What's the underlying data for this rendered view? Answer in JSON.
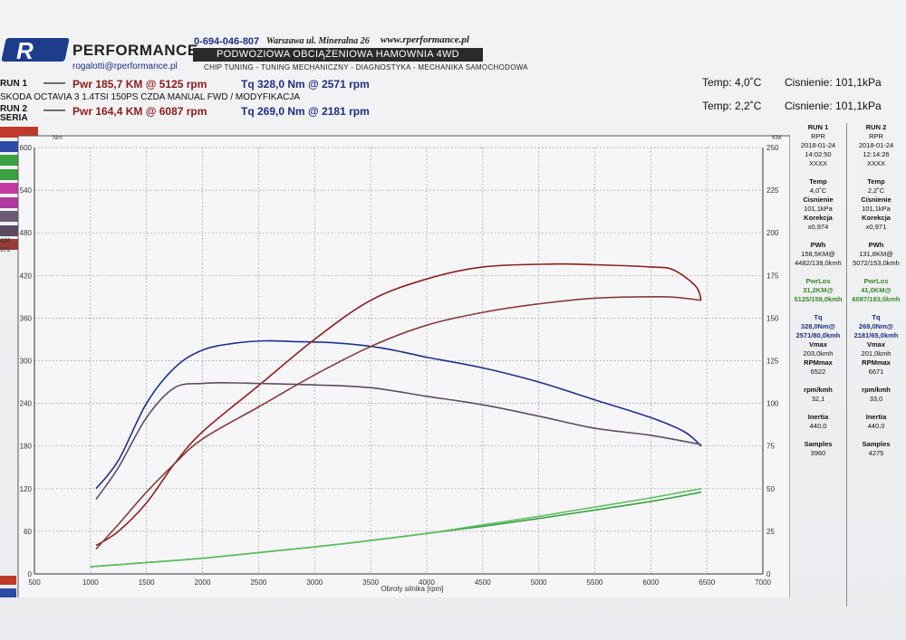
{
  "header": {
    "logo_mark": "R",
    "logo_text": "PERFORMANCE",
    "email": "rogalotti@rperformance.pl",
    "phone": "0-694-046-807",
    "address": "Warszawa ul. Mineralna 26",
    "website": "www.rperformance.pl",
    "banner": "PODWOZIOWA OBCIĄŻENIOWA HAMOWNIA 4WD",
    "tagline": "CHIP TUNING - TUNING MECHANICZNY - DIAGNOSTYKA - MECHANIKA SAMOCHODOWA"
  },
  "runs": {
    "run1_label": "RUN 1",
    "run1_dash": "——",
    "run1_pwr": "Pwr 185,7 KM @ 5125 rpm",
    "run1_tq": "Tq 328,0 Nm @ 2571 rpm",
    "description": "SKODA OCTAVIA 3 1.4TSI 150PS CZDA MANUAL FWD / MODYFIKACJA",
    "run2_label": "RUN 2",
    "run2_sub": "SERIA",
    "run2_dash": "——",
    "run2_pwr": "Pwr 164,4 KM @ 6087 rpm",
    "run2_tq": "Tq 269,0 Nm @ 2181 rpm",
    "temp1": "Temp: 4,0˚C",
    "press1": "Cisnienie: 101,1kPa",
    "temp2": "Temp: 2,2˚C",
    "press2": "Cisnienie: 101,1kPa"
  },
  "legend_strip": [
    "",
    "",
    "",
    "",
    "",
    "",
    "",
    "",
    ""
  ],
  "legend_colors": [
    "#c0392b",
    "#2c4aa8",
    "#3aa040",
    "#3aa040",
    "#c23aa0",
    "#b03aa0",
    "#6a5a70",
    "#5a4a60",
    "#9a3a3a"
  ],
  "legend_nums": [
    "400",
    "372"
  ],
  "table": {
    "run1": [
      "RUN 1",
      "RPR",
      "2018-01-24",
      "14:02:50",
      "XXXX",
      "",
      "Temp",
      "4,0˚C",
      "Cisnienie",
      "101,1kPa",
      "Korekcja",
      "x0,974",
      "",
      "PWh",
      "158,5KM@",
      "4482/139,0kmh",
      "",
      "PwrLos",
      "31,2KM@",
      "5125/159,0kmh",
      "",
      "Tq",
      "328,0Nm@",
      "2571/80,0kmh",
      "Vmax",
      "203,0kmh",
      "RPMmax",
      "6522",
      "",
      "rpm/kmh",
      "32,1",
      "",
      "Inertia",
      "440,0",
      "",
      "Samples",
      "3960"
    ],
    "run2": [
      "RUN 2",
      "RPR",
      "2018-01-24",
      "12:14:26",
      "XXXX",
      "",
      "Temp",
      "2,2˚C",
      "Cisnienie",
      "101,1kPa",
      "Korekcja",
      "x0,971",
      "",
      "PWh",
      "131,8KM@",
      "5072/153,0kmh",
      "",
      "PwrLos",
      "41,0KM@",
      "6087/183,0kmh",
      "",
      "Tq",
      "269,0Nm@",
      "2181/65,0kmh",
      "Vmax",
      "201,0kmh",
      "RPMmax",
      "6671",
      "",
      "rpm/kmh",
      "33,0",
      "",
      "Inertia",
      "440,0",
      "",
      "Samples",
      "4275"
    ],
    "green_rows": [
      17,
      18,
      19
    ],
    "blue_rows": [
      21,
      22,
      23
    ],
    "bold_rows": [
      0,
      6,
      8,
      10,
      13,
      17,
      21,
      24,
      26,
      29,
      32,
      35
    ]
  },
  "chart_data": {
    "type": "line",
    "xlabel": "Obroty silnika [rpm]",
    "ylabel_left": "Nm",
    "ylabel_right": "KM",
    "xlim": [
      500,
      7000
    ],
    "ylim_left": [
      0,
      600
    ],
    "ylim_right": [
      0,
      250
    ],
    "x_ticks": [
      500,
      1000,
      1500,
      2000,
      2500,
      3000,
      3500,
      4000,
      4500,
      5000,
      5500,
      6000,
      6500,
      7000
    ],
    "y_ticks_left": [
      0,
      60,
      120,
      180,
      240,
      300,
      360,
      420,
      480,
      540,
      600
    ],
    "y_ticks_right": [
      0,
      25,
      50,
      75,
      100,
      125,
      150,
      175,
      200,
      225,
      250
    ],
    "grid": true,
    "series": [
      {
        "color": "#1f2f8f",
        "axis": "left",
        "x": [
          1050,
          1250,
          1500,
          1750,
          2000,
          2300,
          2571,
          2800,
          3200,
          3600,
          4000,
          4500,
          5000,
          5500,
          6000,
          6300,
          6450
        ],
        "y": [
          120,
          160,
          240,
          290,
          315,
          325,
          328,
          327,
          325,
          318,
          305,
          290,
          270,
          245,
          220,
          200,
          180
        ]
      },
      {
        "color": "#8e1e1e",
        "axis": "left",
        "x": [
          1050,
          1250,
          1500,
          1750,
          2000,
          2500,
          3000,
          3500,
          4000,
          4500,
          5125,
          5500,
          6000,
          6200,
          6400,
          6450
        ],
        "y": [
          40,
          60,
          100,
          155,
          200,
          265,
          330,
          385,
          415,
          432,
          436,
          435,
          432,
          428,
          405,
          385
        ]
      },
      {
        "color": "#5f4c64",
        "axis": "left",
        "x": [
          1050,
          1250,
          1500,
          1750,
          2000,
          2181,
          2500,
          3000,
          3500,
          4000,
          4500,
          5000,
          5500,
          6000,
          6450
        ],
        "y": [
          105,
          150,
          220,
          262,
          268,
          269,
          268,
          266,
          262,
          250,
          238,
          222,
          205,
          195,
          182
        ]
      },
      {
        "color": "#8a3a3a",
        "axis": "left",
        "x": [
          1050,
          1250,
          1500,
          1750,
          2000,
          2500,
          3000,
          3500,
          4000,
          4500,
          5000,
          5500,
          6087,
          6300,
          6450
        ],
        "y": [
          35,
          70,
          115,
          155,
          190,
          235,
          280,
          320,
          350,
          368,
          380,
          388,
          390,
          388,
          385
        ]
      },
      {
        "color": "#3aa040",
        "axis": "left",
        "x": [
          1000,
          1500,
          2000,
          2500,
          3000,
          3500,
          4000,
          4500,
          5000,
          5500,
          6000,
          6450
        ],
        "y": [
          10,
          16,
          22,
          30,
          38,
          47,
          57,
          67,
          78,
          90,
          102,
          115
        ]
      },
      {
        "color": "#5fbf60",
        "axis": "left",
        "x": [
          1000,
          1500,
          2000,
          2500,
          3000,
          3500,
          4000,
          4500,
          5000,
          5500,
          6000,
          6450
        ],
        "y": [
          10,
          16,
          22,
          30,
          38,
          47,
          57,
          69,
          81,
          94,
          107,
          120
        ]
      }
    ]
  }
}
